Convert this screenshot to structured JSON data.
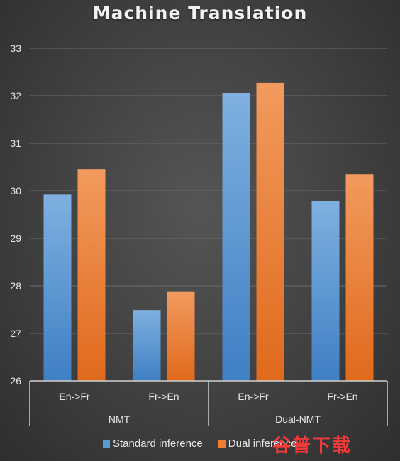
{
  "chart_data": {
    "type": "bar",
    "title": "Machine Translation",
    "xlabel": "",
    "ylabel": "",
    "ylim": [
      26,
      33
    ],
    "yticks": [
      26,
      27,
      28,
      29,
      30,
      31,
      32,
      33
    ],
    "grid": true,
    "legend_position": "bottom",
    "groups": [
      {
        "name": "NMT",
        "categories": [
          "En->Fr",
          "Fr->En"
        ]
      },
      {
        "name": "Dual-NMT",
        "categories": [
          "En->Fr",
          "Fr->En"
        ]
      }
    ],
    "categories": [
      "En->Fr",
      "Fr->En",
      "En->Fr",
      "Fr->En"
    ],
    "series": [
      {
        "name": "Standard inference",
        "values": [
          29.92,
          27.49,
          32.06,
          29.78
        ],
        "color": "#5b9bd5"
      },
      {
        "name": "Dual inference",
        "values": [
          30.46,
          27.87,
          32.27,
          30.34
        ],
        "color": "#ed7d31"
      }
    ]
  },
  "watermark": "谷普下载"
}
